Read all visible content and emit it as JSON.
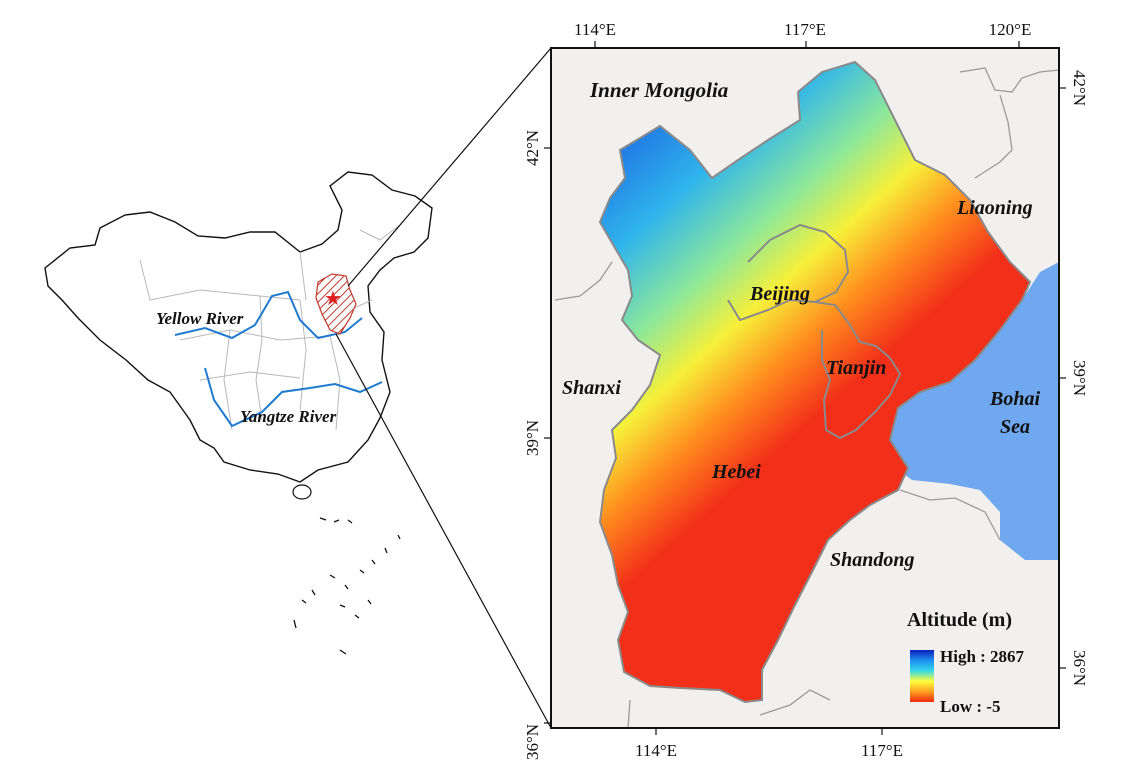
{
  "overview": {
    "rivers": {
      "yellow": "Yellow River",
      "yangtze": "Yangtze River"
    }
  },
  "detail": {
    "regions": {
      "inner_mongolia": "Inner Mongolia",
      "liaoning": "Liaoning",
      "beijing": "Beijing",
      "tianjin": "Tianjin",
      "shanxi": "Shanxi",
      "hebei": "Hebei",
      "shandong": "Shandong",
      "bohai_line1": "Bohai",
      "bohai_line2": "Sea"
    },
    "axes": {
      "top": [
        "114°E",
        "117°E",
        "120°E"
      ],
      "bottom": [
        "114°E",
        "117°E"
      ],
      "left": [
        "42°N",
        "39°N",
        "36°N"
      ],
      "right": [
        "42°N",
        "39°N",
        "36°N"
      ]
    },
    "legend": {
      "title": "Altitude (m)",
      "high": "High : 2867",
      "low": "Low : -5",
      "colors": [
        "#0a1fb8",
        "#1f8ff0",
        "#36d8e8",
        "#ffff3c",
        "#ffa020",
        "#f02a10"
      ]
    },
    "colors": {
      "sea": "#6fa8ee",
      "land_bg": "#f2f0ef",
      "lowland": "#f2301a",
      "border": "#8a8a8a"
    }
  }
}
